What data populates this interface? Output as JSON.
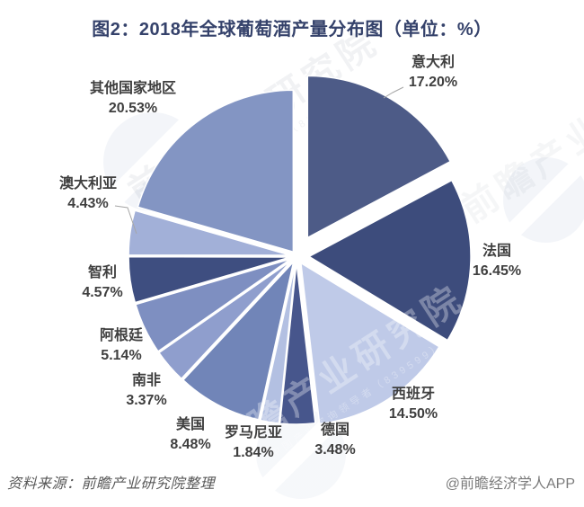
{
  "title": "图2：2018年全球葡萄酒产量分布图（单位：%）",
  "source": "资料来源：前瞻产业研究院整理",
  "credit": "@前瞻经济学人APP",
  "watermark": {
    "text": "前瞻产业研究院",
    "subtext": "中国产业咨询领导者（839599）"
  },
  "chart_data": {
    "type": "pie",
    "title": "图2：2018年全球葡萄酒产量分布图（单位：%）",
    "unit": "%",
    "start_angle_deg": 0,
    "direction": "clockwise",
    "exploded": true,
    "legend_position": "none",
    "slices": [
      {
        "id": "italy",
        "label": "意大利",
        "value": 17.2,
        "pct": "17.20%",
        "color": "#4d5b87"
      },
      {
        "id": "france",
        "label": "法国",
        "value": 16.45,
        "pct": "16.45%",
        "color": "#3d4c7c"
      },
      {
        "id": "spain",
        "label": "西班牙",
        "value": 14.5,
        "pct": "14.50%",
        "color": "#bfcae8"
      },
      {
        "id": "germany",
        "label": "德国",
        "value": 3.48,
        "pct": "3.48%",
        "color": "#47568c"
      },
      {
        "id": "romania",
        "label": "罗马尼亚",
        "value": 1.84,
        "pct": "1.84%",
        "color": "#b3c0e2"
      },
      {
        "id": "usa",
        "label": "美国",
        "value": 8.48,
        "pct": "8.48%",
        "color": "#7185b8"
      },
      {
        "id": "south-africa",
        "label": "南非",
        "value": 3.37,
        "pct": "3.37%",
        "color": "#8f9ecd"
      },
      {
        "id": "argentina",
        "label": "阿根廷",
        "value": 5.14,
        "pct": "5.14%",
        "color": "#7e8fc1"
      },
      {
        "id": "chile",
        "label": "智利",
        "value": 4.57,
        "pct": "4.57%",
        "color": "#3e4e80"
      },
      {
        "id": "australia",
        "label": "澳大利亚",
        "value": 4.43,
        "pct": "4.43%",
        "color": "#a2b0d8"
      },
      {
        "id": "others",
        "label": "其他国家地区",
        "value": 20.53,
        "pct": "20.53%",
        "color": "#8395c3"
      }
    ]
  }
}
